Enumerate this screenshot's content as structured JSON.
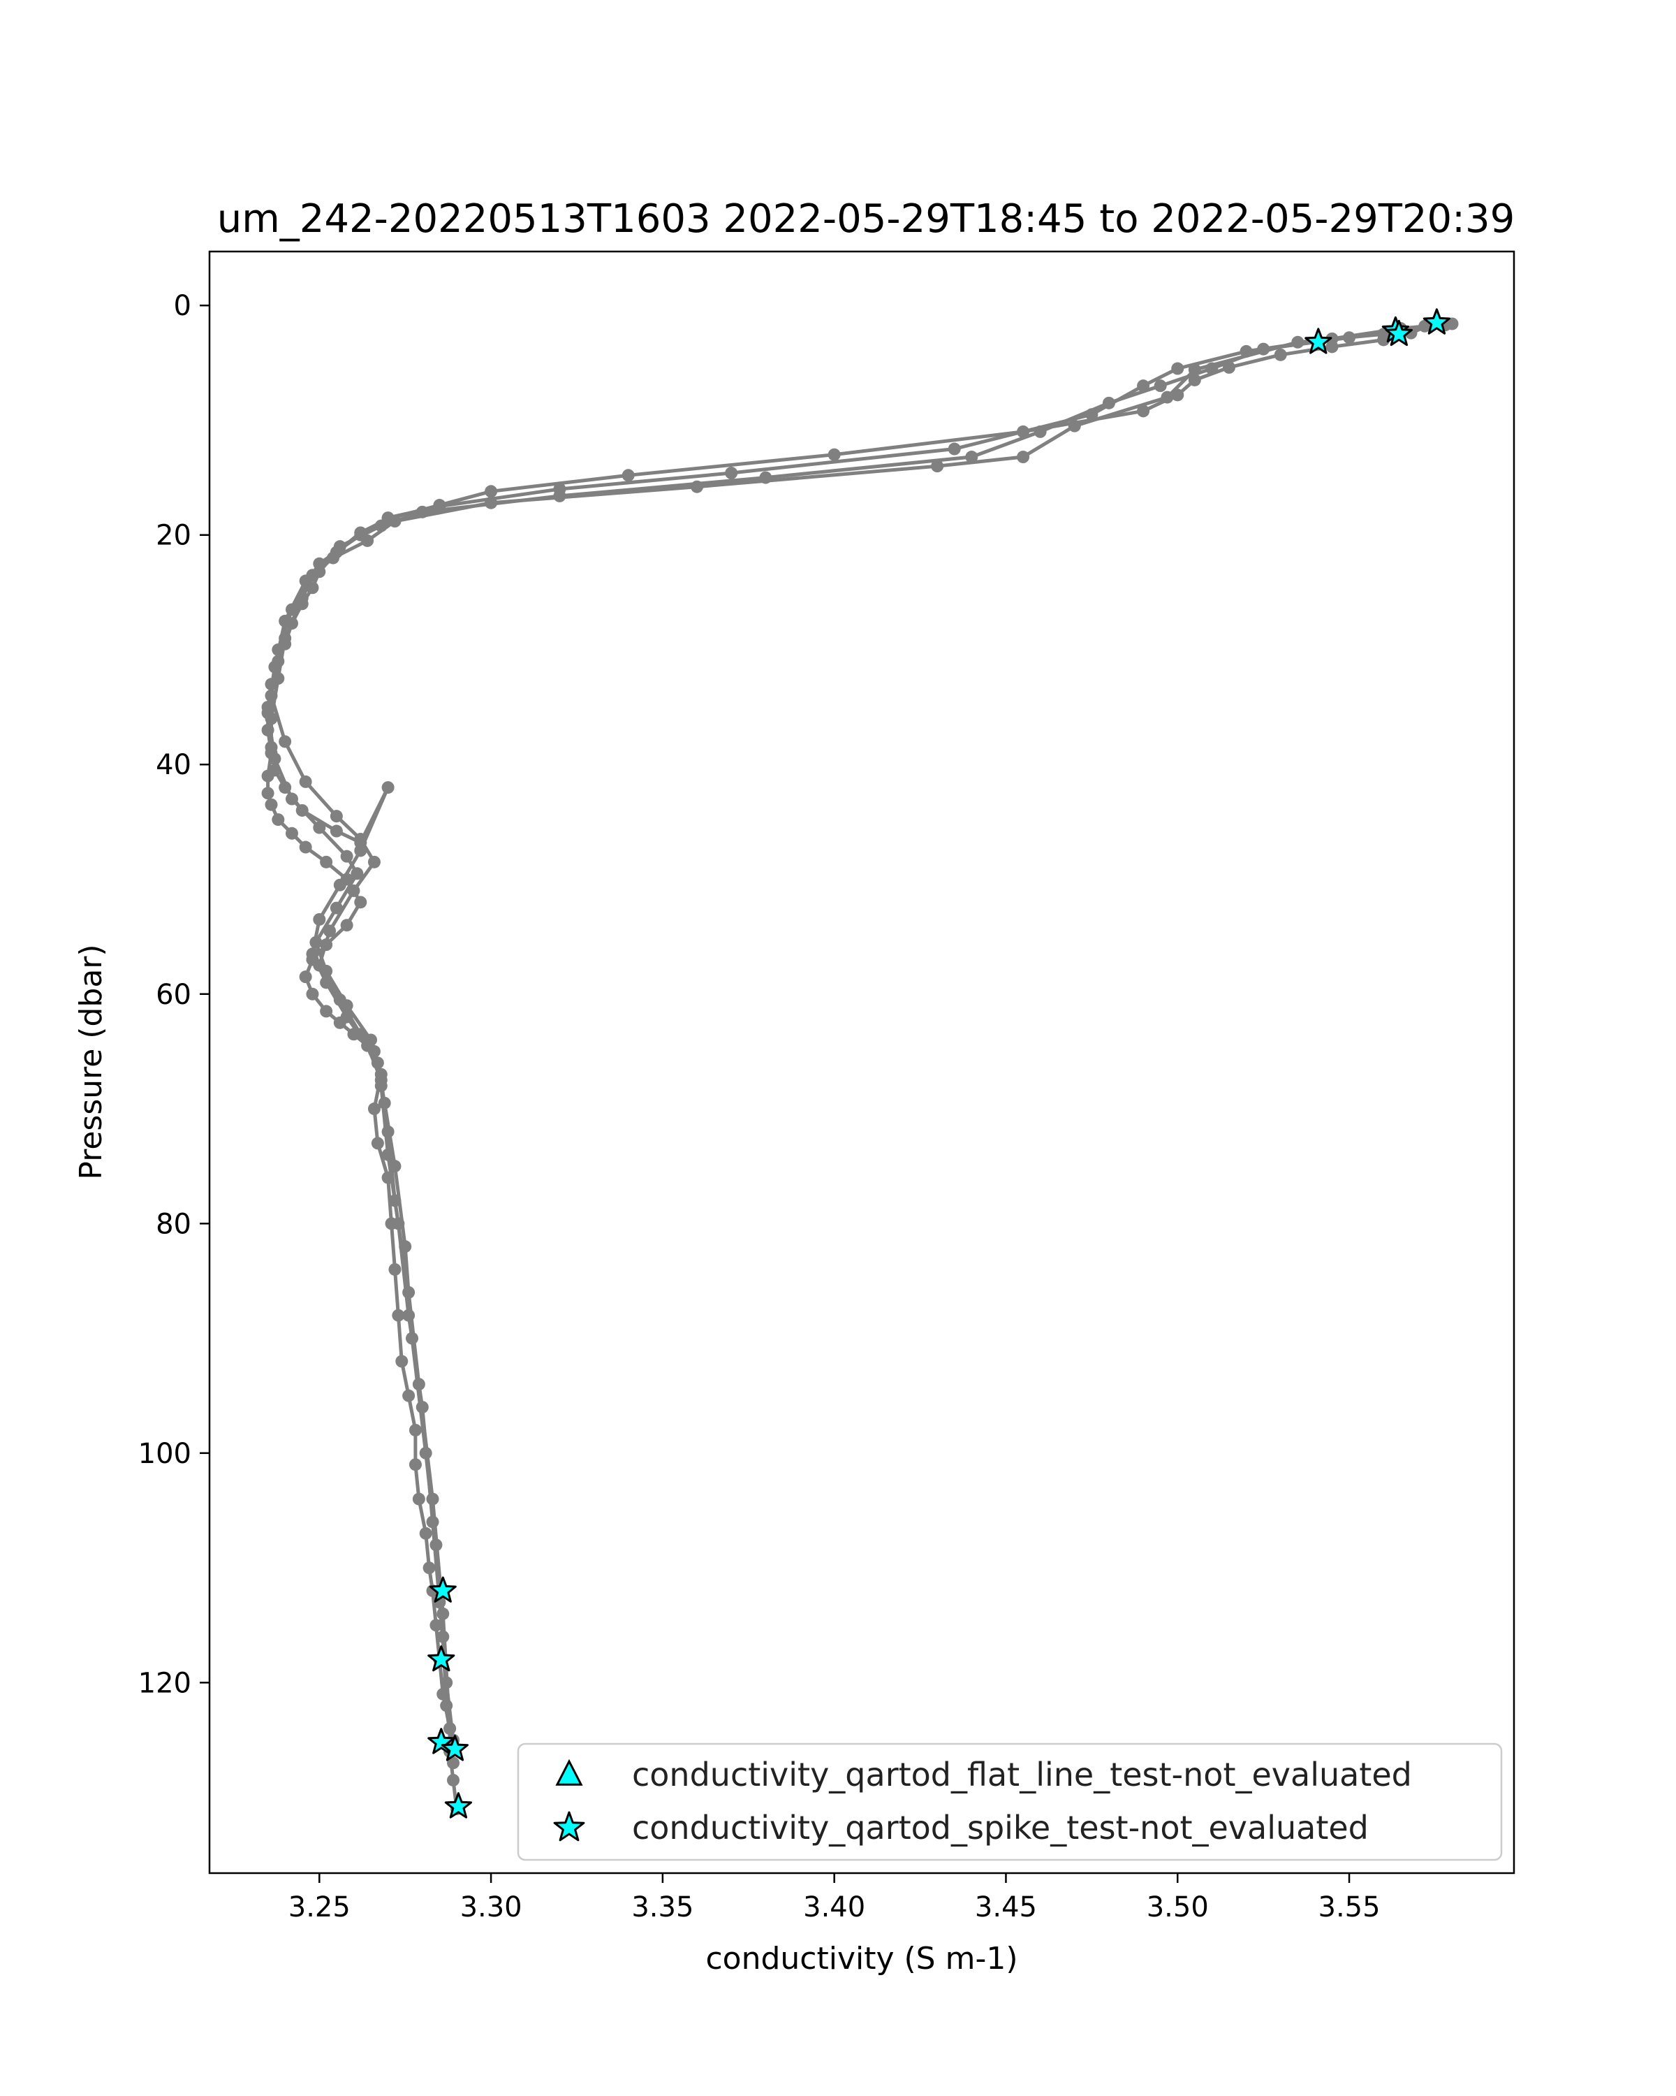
{
  "chart_data": {
    "type": "line",
    "title": "um_242-20220513T1603 2022-05-29T18:45 to 2022-05-29T20:39",
    "xlabel": "conductivity (S m-1)",
    "ylabel": "Pressure (dbar)",
    "xlim": [
      3.218,
      3.598
    ],
    "ylim": [
      136.6,
      -4.7
    ],
    "y_inverted": true,
    "xticks": [
      "3.25",
      "3.30",
      "3.35",
      "3.40",
      "3.45",
      "3.50",
      "3.55"
    ],
    "yticks": [
      "0",
      "20",
      "40",
      "60",
      "80",
      "100",
      "120"
    ],
    "grid": false,
    "legend_position": "lower-right",
    "series": [
      {
        "kind": "profile-line",
        "color": "#808080",
        "x": [
          3.575,
          3.568,
          3.56,
          3.545,
          3.53,
          3.515,
          3.505,
          3.5,
          3.49,
          3.455,
          3.4,
          3.34,
          3.3,
          3.285,
          3.27,
          3.262,
          3.255,
          3.25,
          3.248,
          3.245,
          3.242,
          3.24,
          3.238,
          3.236,
          3.235,
          3.235,
          3.236,
          3.235,
          3.235,
          3.236,
          3.238,
          3.242,
          3.246,
          3.252,
          3.258,
          3.262,
          3.258,
          3.252,
          3.248,
          3.246,
          3.248,
          3.252,
          3.256,
          3.26,
          3.266,
          3.268,
          3.266,
          3.267,
          3.27,
          3.271,
          3.272,
          3.273,
          3.274,
          3.276,
          3.278,
          3.278,
          3.279,
          3.281,
          3.282,
          3.283,
          3.284,
          3.285,
          3.286,
          3.288,
          3.288,
          3.289,
          3.29
        ],
        "y": [
          1.5,
          2.4,
          3.0,
          3.6,
          4.3,
          5.4,
          6.5,
          7.8,
          9.2,
          11.0,
          13.0,
          14.8,
          16.2,
          17.4,
          18.6,
          19.8,
          21.5,
          23.2,
          24.6,
          26.0,
          27.7,
          29.5,
          31.0,
          33.0,
          35.0,
          37.0,
          39.0,
          41.0,
          42.5,
          43.5,
          44.8,
          46.0,
          47.2,
          48.5,
          50.0,
          52.0,
          54.0,
          55.7,
          57.0,
          58.5,
          60.0,
          61.5,
          62.5,
          63.5,
          65.0,
          67.0,
          70.0,
          73.0,
          76.0,
          80.0,
          84.0,
          88.0,
          92.0,
          95.0,
          98.0,
          101.0,
          104.0,
          107.0,
          110.0,
          112.0,
          115.0,
          118.0,
          121.0,
          124.0,
          126.0,
          128.5,
          131.0
        ]
      },
      {
        "kind": "profile-line",
        "color": "#808080",
        "x": [
          3.58,
          3.565,
          3.545,
          3.52,
          3.5,
          3.49,
          3.475,
          3.435,
          3.37,
          3.32,
          3.285,
          3.27,
          3.262,
          3.25,
          3.245,
          3.24,
          3.238,
          3.236,
          3.236,
          3.237,
          3.24,
          3.245,
          3.255,
          3.262,
          3.27,
          3.262,
          3.256,
          3.25,
          3.248,
          3.252,
          3.258,
          3.264,
          3.268,
          3.27,
          3.272,
          3.276,
          3.279,
          3.283,
          3.286,
          3.288
        ],
        "y": [
          1.6,
          2.0,
          2.9,
          4.0,
          5.5,
          7.0,
          9.5,
          12.5,
          14.6,
          16.0,
          17.5,
          18.5,
          20.0,
          22.5,
          25.5,
          29.0,
          32.5,
          36.0,
          38.5,
          40.5,
          42.0,
          44.0,
          45.8,
          46.8,
          42.0,
          47.5,
          50.5,
          53.5,
          56.5,
          59.0,
          62.0,
          64.5,
          67.5,
          72.0,
          78.0,
          86.0,
          94.0,
          104.0,
          114.0,
          124.0
        ]
      },
      {
        "kind": "profile-line",
        "color": "#808080",
        "x": [
          3.572,
          3.55,
          3.525,
          3.51,
          3.495,
          3.48,
          3.46,
          3.44,
          3.38,
          3.32,
          3.28,
          3.268,
          3.256,
          3.248,
          3.242,
          3.238,
          3.236,
          3.24,
          3.246,
          3.255,
          3.262,
          3.266,
          3.26,
          3.253,
          3.25,
          3.256,
          3.262,
          3.267,
          3.269,
          3.272,
          3.275,
          3.277,
          3.281,
          3.284,
          3.286,
          3.287,
          3.289
        ],
        "y": [
          1.8,
          2.8,
          3.8,
          5.5,
          7.0,
          8.5,
          11.0,
          13.2,
          15.0,
          16.6,
          18.0,
          19.2,
          21.0,
          23.5,
          26.5,
          30.0,
          34.0,
          38.0,
          41.5,
          44.5,
          46.5,
          48.5,
          51.0,
          54.5,
          57.5,
          60.5,
          63.5,
          66.0,
          69.5,
          75.0,
          82.0,
          90.0,
          100.0,
          108.0,
          116.0,
          122.0,
          127.0
        ]
      },
      {
        "kind": "profile-line",
        "color": "#808080",
        "x": [
          3.578,
          3.56,
          3.535,
          3.505,
          3.497,
          3.47,
          3.455,
          3.43,
          3.36,
          3.3,
          3.272,
          3.264,
          3.254,
          3.246,
          3.24,
          3.237,
          3.235,
          3.237,
          3.242,
          3.25,
          3.258,
          3.261,
          3.255,
          3.249,
          3.252,
          3.258,
          3.265,
          3.268,
          3.27,
          3.273,
          3.276,
          3.28,
          3.283,
          3.285,
          3.287,
          3.289
        ],
        "y": [
          1.7,
          2.5,
          3.2,
          5.6,
          8.0,
          10.5,
          13.2,
          14.0,
          15.8,
          17.2,
          18.8,
          20.5,
          22.0,
          24.0,
          27.5,
          31.5,
          35.5,
          39.5,
          43.0,
          45.5,
          48.0,
          49.5,
          52.5,
          55.5,
          58.0,
          61.0,
          64.0,
          68.0,
          74.0,
          80.0,
          88.0,
          96.0,
          106.0,
          113.0,
          120.0,
          125.0
        ]
      }
    ],
    "flags": [
      {
        "name": "conductivity_qartod_flat_line_test-not_evaluated",
        "marker": "triangle",
        "color": "#00ffff",
        "x": [],
        "y": []
      },
      {
        "name": "conductivity_qartod_spike_test-not_evaluated",
        "marker": "star",
        "color": "#00ffff",
        "x": [
          3.5755,
          3.5635,
          3.5645,
          3.541,
          3.286,
          3.2855,
          3.2855,
          3.2895,
          3.2905
        ],
        "y": [
          1.5,
          2.2,
          2.5,
          3.2,
          112.0,
          118.0,
          125.2,
          125.8,
          130.8
        ]
      }
    ]
  }
}
